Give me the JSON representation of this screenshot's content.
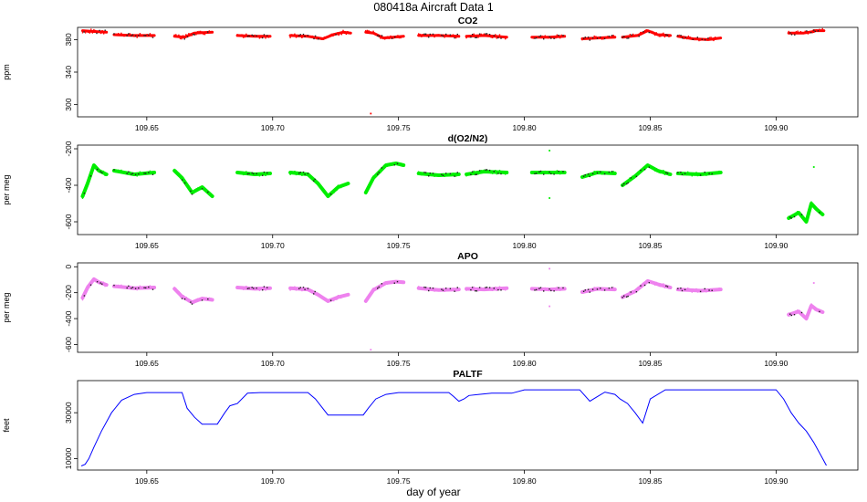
{
  "figure": {
    "title": "080418a   Aircraft Data 1",
    "xlabel": "day of year"
  },
  "chart_data": [
    {
      "type": "scatter",
      "title": "CO2",
      "ylabel": "ppm",
      "color": "#ff0000",
      "xlim": [
        109.6225,
        109.9325
      ],
      "ylim": [
        285,
        395
      ],
      "xticks": [
        "109.65",
        "109.70",
        "109.75",
        "109.80",
        "109.85",
        "109.90"
      ],
      "yticks": [
        "300",
        "340",
        "380"
      ],
      "segments": [
        {
          "x": [
            109.6245,
            109.629,
            109.634
          ],
          "y": [
            391,
            390,
            389
          ]
        },
        {
          "x": [
            109.637,
            109.645,
            109.653
          ],
          "y": [
            386,
            385,
            385
          ]
        },
        {
          "x": [
            109.661,
            109.665,
            109.669,
            109.676
          ],
          "y": [
            384,
            383,
            388,
            389
          ]
        },
        {
          "x": [
            109.686,
            109.693,
            109.699
          ],
          "y": [
            385,
            384,
            384
          ]
        },
        {
          "x": [
            109.707,
            109.714,
            109.72,
            109.724,
            109.728,
            109.731
          ],
          "y": [
            385,
            384,
            381,
            386,
            389,
            388
          ]
        },
        {
          "x": [
            109.737,
            109.74,
            109.744,
            109.748,
            109.752
          ],
          "y": [
            389,
            388,
            382,
            383,
            384
          ]
        },
        {
          "x": [
            109.758,
            109.766,
            109.774
          ],
          "y": [
            385,
            385,
            384
          ]
        },
        {
          "x": [
            109.777,
            109.784,
            109.793
          ],
          "y": [
            384,
            385,
            383
          ]
        },
        {
          "x": [
            109.803,
            109.81,
            109.816
          ],
          "y": [
            383,
            383,
            384
          ]
        },
        {
          "x": [
            109.823,
            109.829,
            109.836
          ],
          "y": [
            381,
            382,
            383
          ]
        },
        {
          "x": [
            109.839,
            109.845,
            109.849,
            109.853,
            109.858
          ],
          "y": [
            383,
            385,
            391,
            386,
            385
          ]
        },
        {
          "x": [
            109.861,
            109.867,
            109.873,
            109.878
          ],
          "y": [
            384,
            381,
            380,
            382
          ]
        },
        {
          "x": [
            109.905,
            109.911,
            109.915
          ],
          "y": [
            388,
            388,
            390
          ]
        },
        {
          "x": [
            109.915,
            109.919
          ],
          "y": [
            391,
            391
          ]
        }
      ],
      "outliers": [
        {
          "x": 109.739,
          "y": 289
        }
      ]
    },
    {
      "type": "scatter",
      "title": "d(O2/N2)",
      "ylabel": "per meg",
      "color": "#00ee00",
      "xlim": [
        109.6225,
        109.9325
      ],
      "ylim": [
        -670,
        -180
      ],
      "xticks": [
        "109.65",
        "109.70",
        "109.75",
        "109.80",
        "109.85",
        "109.90"
      ],
      "yticks": [
        "-600",
        "-400",
        "-200"
      ],
      "segments": [
        {
          "x": [
            109.6245,
            109.6265,
            109.629,
            109.631,
            109.634
          ],
          "y": [
            -460,
            -390,
            -290,
            -320,
            -340
          ]
        },
        {
          "x": [
            109.637,
            109.645,
            109.653
          ],
          "y": [
            -320,
            -340,
            -330
          ]
        },
        {
          "x": [
            109.661,
            109.664,
            109.668,
            109.672,
            109.676
          ],
          "y": [
            -320,
            -360,
            -440,
            -410,
            -460
          ]
        },
        {
          "x": [
            109.686,
            109.693,
            109.699
          ],
          "y": [
            -330,
            -340,
            -335
          ]
        },
        {
          "x": [
            109.707,
            109.714,
            109.718,
            109.722,
            109.726,
            109.73
          ],
          "y": [
            -330,
            -340,
            -390,
            -460,
            -410,
            -390
          ]
        },
        {
          "x": [
            109.737,
            109.74,
            109.745,
            109.749,
            109.752
          ],
          "y": [
            -440,
            -360,
            -290,
            -280,
            -290
          ]
        },
        {
          "x": [
            109.758,
            109.766,
            109.774
          ],
          "y": [
            -335,
            -345,
            -340
          ]
        },
        {
          "x": [
            109.777,
            109.784,
            109.793
          ],
          "y": [
            -340,
            -325,
            -330
          ]
        },
        {
          "x": [
            109.803,
            109.81,
            109.816
          ],
          "y": [
            -330,
            -330,
            -330
          ]
        },
        {
          "x": [
            109.823,
            109.829,
            109.836
          ],
          "y": [
            -355,
            -330,
            -335
          ]
        },
        {
          "x": [
            109.839,
            109.844,
            109.849,
            109.853,
            109.858
          ],
          "y": [
            -400,
            -350,
            -290,
            -320,
            -340
          ]
        },
        {
          "x": [
            109.861,
            109.87,
            109.878
          ],
          "y": [
            -335,
            -340,
            -330
          ]
        },
        {
          "x": [
            109.905,
            109.909,
            109.912,
            109.914,
            109.916,
            109.9185
          ],
          "y": [
            -580,
            -550,
            -600,
            -500,
            -530,
            -560
          ]
        }
      ],
      "outliers": [
        {
          "x": 109.81,
          "y": -210
        },
        {
          "x": 109.81,
          "y": -470
        },
        {
          "x": 109.915,
          "y": -300
        }
      ]
    },
    {
      "type": "scatter",
      "title": "APO",
      "ylabel": "per meg",
      "color": "#ee82ee",
      "xlim": [
        109.6225,
        109.9325
      ],
      "ylim": [
        -660,
        30
      ],
      "xticks": [
        "109.65",
        "109.70",
        "109.75",
        "109.80",
        "109.85",
        "109.90"
      ],
      "yticks": [
        "-600",
        "-400",
        "-200",
        "0"
      ],
      "segments": [
        {
          "x": [
            109.6245,
            109.6265,
            109.629,
            109.631,
            109.634
          ],
          "y": [
            -240,
            -160,
            -95,
            -120,
            -140
          ]
        },
        {
          "x": [
            109.637,
            109.645,
            109.653
          ],
          "y": [
            -150,
            -165,
            -160
          ]
        },
        {
          "x": [
            109.661,
            109.664,
            109.668,
            109.672,
            109.676
          ],
          "y": [
            -170,
            -230,
            -275,
            -245,
            -255
          ]
        },
        {
          "x": [
            109.686,
            109.693,
            109.699
          ],
          "y": [
            -160,
            -170,
            -165
          ]
        },
        {
          "x": [
            109.707,
            109.714,
            109.718,
            109.722,
            109.726,
            109.73
          ],
          "y": [
            -165,
            -175,
            -215,
            -265,
            -235,
            -215
          ]
        },
        {
          "x": [
            109.737,
            109.74,
            109.745,
            109.749,
            109.752
          ],
          "y": [
            -265,
            -180,
            -125,
            -115,
            -120
          ]
        },
        {
          "x": [
            109.758,
            109.766,
            109.774
          ],
          "y": [
            -165,
            -180,
            -175
          ]
        },
        {
          "x": [
            109.777,
            109.784,
            109.793
          ],
          "y": [
            -170,
            -175,
            -165
          ]
        },
        {
          "x": [
            109.803,
            109.81,
            109.816
          ],
          "y": [
            -170,
            -175,
            -170
          ]
        },
        {
          "x": [
            109.823,
            109.829,
            109.836
          ],
          "y": [
            -195,
            -170,
            -175
          ]
        },
        {
          "x": [
            109.839,
            109.844,
            109.849,
            109.853,
            109.858
          ],
          "y": [
            -235,
            -190,
            -110,
            -135,
            -160
          ]
        },
        {
          "x": [
            109.861,
            109.87,
            109.878
          ],
          "y": [
            -175,
            -185,
            -175
          ]
        },
        {
          "x": [
            109.905,
            109.909,
            109.912,
            109.914,
            109.916,
            109.9185
          ],
          "y": [
            -370,
            -345,
            -400,
            -300,
            -330,
            -350
          ]
        }
      ],
      "outliers": [
        {
          "x": 109.81,
          "y": -15
        },
        {
          "x": 109.81,
          "y": -305
        },
        {
          "x": 109.739,
          "y": -640
        },
        {
          "x": 109.915,
          "y": -125
        }
      ]
    },
    {
      "type": "line",
      "title": "PALTF",
      "ylabel": "feet",
      "color": "#0000ff",
      "xlim": [
        109.6225,
        109.9325
      ],
      "ylim": [
        5000,
        44000
      ],
      "xticks": [
        "109.65",
        "109.70",
        "109.75",
        "109.80",
        "109.85",
        "109.90"
      ],
      "yticks": [
        "10000",
        "30000"
      ],
      "x": [
        109.624,
        109.6255,
        109.627,
        109.629,
        109.632,
        109.636,
        109.64,
        109.645,
        109.65,
        109.654,
        109.658,
        109.664,
        109.666,
        109.669,
        109.672,
        109.676,
        109.678,
        109.681,
        109.683,
        109.686,
        109.69,
        109.695,
        109.7,
        109.707,
        109.714,
        109.717,
        109.722,
        109.73,
        109.736,
        109.738,
        109.741,
        109.745,
        109.75,
        109.76,
        109.77,
        109.772,
        109.774,
        109.776,
        109.778,
        109.782,
        109.787,
        109.79,
        109.795,
        109.8,
        109.81,
        109.822,
        109.826,
        109.829,
        109.832,
        109.836,
        109.838,
        109.841,
        109.844,
        109.847,
        109.85,
        109.856,
        109.87,
        109.885,
        109.9,
        109.903,
        109.906,
        109.909,
        109.912,
        109.915,
        109.918,
        109.92
      ],
      "y": [
        6800,
        7500,
        10000,
        15000,
        22000,
        30000,
        35500,
        38000,
        38800,
        38800,
        38800,
        38800,
        32000,
        28000,
        25000,
        25000,
        25000,
        30000,
        33000,
        34000,
        38500,
        38800,
        38800,
        38800,
        38800,
        36000,
        29000,
        29000,
        29000,
        32000,
        36000,
        38000,
        38800,
        38800,
        38800,
        37000,
        35000,
        36000,
        37500,
        38000,
        38500,
        38500,
        38500,
        40000,
        40000,
        40000,
        35000,
        37000,
        39000,
        38000,
        36000,
        34000,
        30000,
        25500,
        36000,
        40000,
        40000,
        40000,
        40000,
        36000,
        30000,
        25500,
        22000,
        17000,
        11000,
        7000
      ]
    }
  ]
}
